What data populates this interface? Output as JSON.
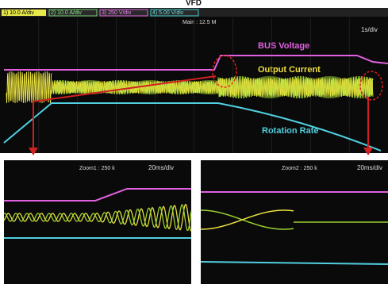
{
  "header": {
    "title": "VFD"
  },
  "main_panel": {
    "channels": [
      "1) 10.0 A/div",
      "2) 10.0 A/div",
      "3) 250 V/div",
      "4) 5.00 V/div"
    ],
    "info": "Main : 12.5 M",
    "timebase": "1s/div",
    "labels": {
      "bus_voltage": "BUS Voltage",
      "output_current": "Output Current",
      "rotation_rate": "Rotation Rate"
    }
  },
  "zoom_panels": [
    {
      "info": "Zoom1 : 250 k",
      "timebase": "20ms/div"
    },
    {
      "info": "Zoom2 : 250 k",
      "timebase": "20ms/div"
    }
  ]
}
